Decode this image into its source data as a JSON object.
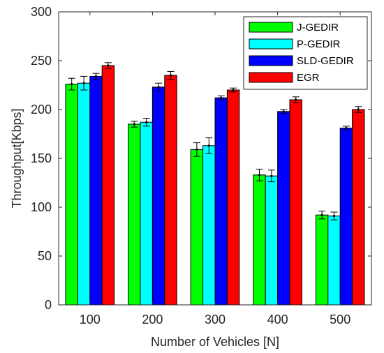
{
  "chart_data": {
    "type": "bar",
    "xlabel": "Number of Vehicles [N]",
    "ylabel": "Throughput[Kbps]",
    "categories": [
      "100",
      "200",
      "300",
      "400",
      "500"
    ],
    "ylim": [
      0,
      300
    ],
    "yticks": [
      "0",
      "50",
      "100",
      "150",
      "200",
      "250",
      "300"
    ],
    "grid": false,
    "legend_position": "top-right",
    "series": [
      {
        "name": "J-GEDIR",
        "color": "#00ff00",
        "values": [
          226,
          185,
          159,
          133,
          92
        ],
        "errors": [
          6,
          3,
          7,
          6,
          4
        ]
      },
      {
        "name": "P-GEDIR",
        "color": "#00ffff",
        "values": [
          227,
          187,
          163,
          132,
          91
        ],
        "errors": [
          7,
          4,
          8,
          6,
          4
        ]
      },
      {
        "name": "SLD-GEDIR",
        "color": "#0000ff",
        "values": [
          234,
          223,
          212,
          198,
          181
        ],
        "errors": [
          3,
          4,
          2,
          2,
          2
        ]
      },
      {
        "name": "EGR",
        "color": "#ff0000",
        "values": [
          245,
          235,
          220,
          210,
          200
        ],
        "errors": [
          3,
          4,
          2,
          3,
          3
        ]
      }
    ]
  }
}
